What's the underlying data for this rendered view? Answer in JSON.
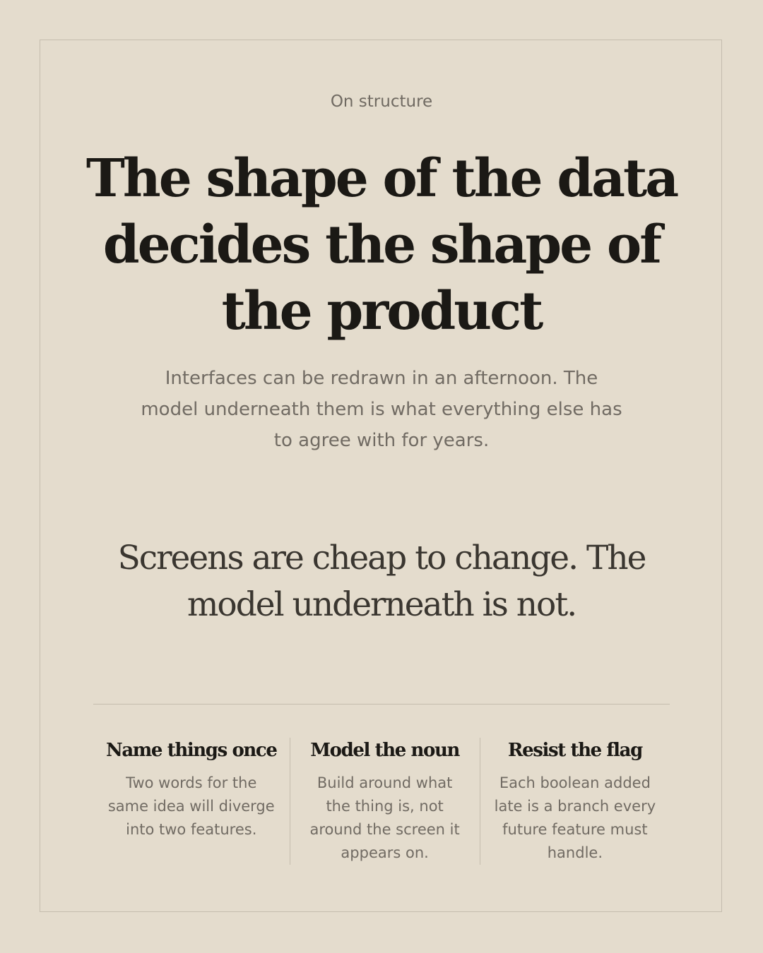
{
  "kicker": "On structure",
  "headline": "The shape of the data decides the shape of the product",
  "intro": "Interfaces can be redrawn in an afternoon. The model underneath them is what everything else has to agree with for years.",
  "pullquote": "Screens are cheap to change. The model underneath is not.",
  "principles": [
    {
      "title": "Name things once",
      "body": "Two words for the same idea will diverge into two features."
    },
    {
      "title": "Model the noun",
      "body": "Build around what the thing is, not around the screen it appears on."
    },
    {
      "title": "Resist the flag",
      "body": "Each boolean added late is a branch every future feature must handle."
    }
  ]
}
